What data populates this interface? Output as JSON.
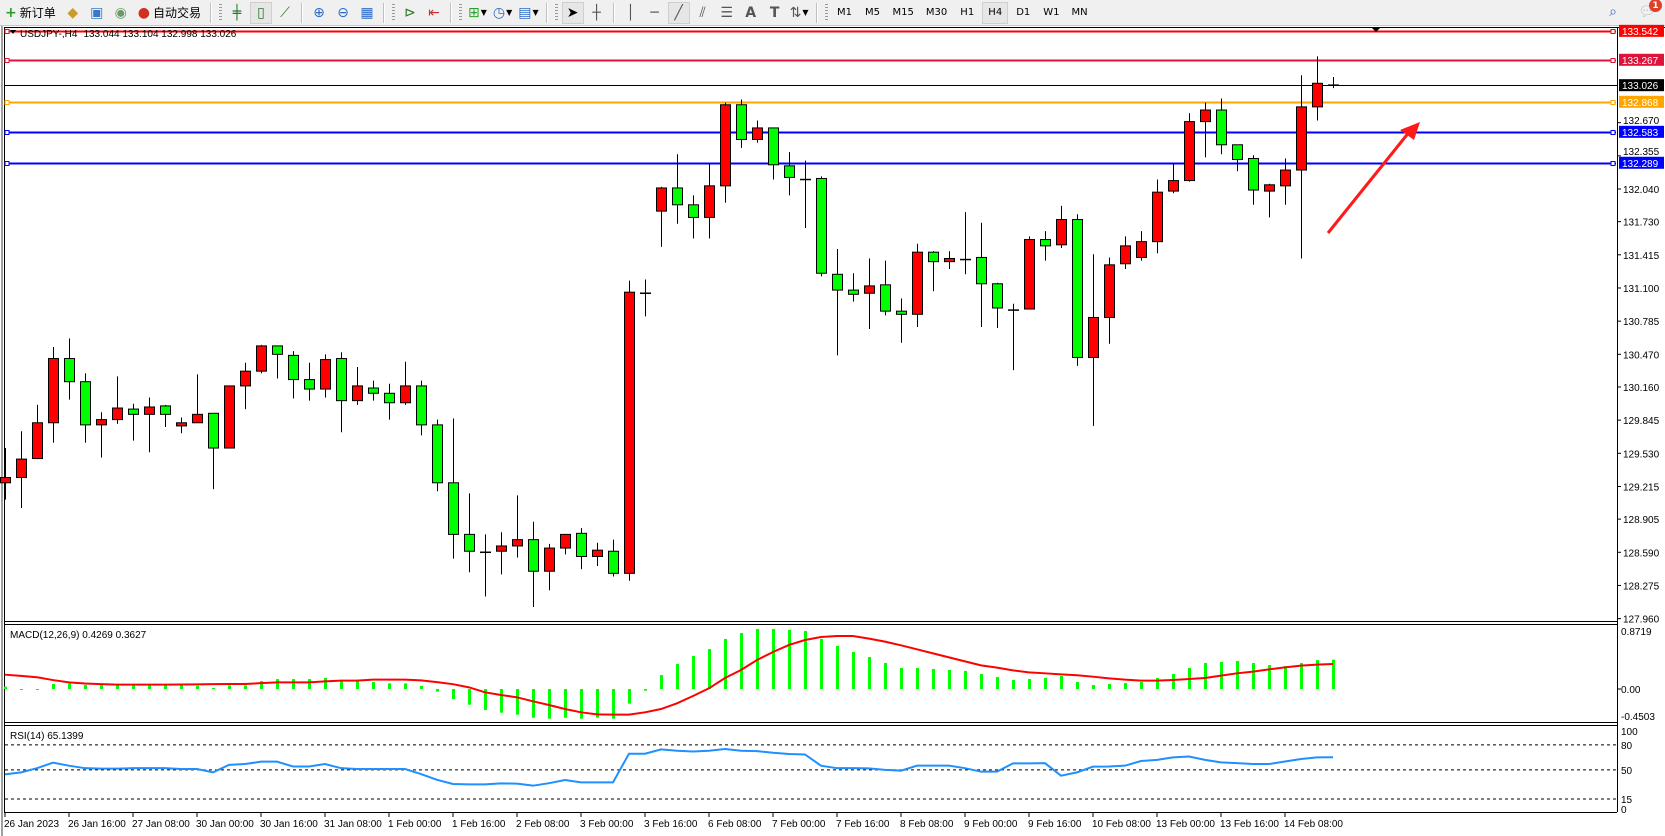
{
  "toolbar": {
    "new_order_label": "新订单",
    "auto_trading_label": "自动交易",
    "periods": [
      "M1",
      "M5",
      "M15",
      "M30",
      "H1",
      "H4",
      "D1",
      "W1",
      "MN"
    ],
    "active_period": "H4",
    "notification_count": "1"
  },
  "chart_header": {
    "symbol": "USDJPY-,H4",
    "ohlc_text": "133.044 133.104 132.998 133.026"
  },
  "colors": {
    "bull_candle": "#ff0000",
    "bear_candle": "#00ff00",
    "macd_histogram": "#00ff00",
    "macd_signal": "#ff0000",
    "rsi_line": "#1e90ff",
    "arrow": "#ff0000"
  },
  "levels": [
    {
      "price": "133.542",
      "color": "#ff0000"
    },
    {
      "price": "133.267",
      "color": "#dc143c"
    },
    {
      "price": "132.868",
      "color": "#ffa500"
    },
    {
      "price": "132.583",
      "color": "#0000ff"
    },
    {
      "price": "132.289",
      "color": "#0000ff"
    }
  ],
  "bid_line": {
    "price": "133.026",
    "color": "#000000"
  },
  "chart_data": [
    {
      "type": "candlestick",
      "title": "USDJPY-,H4",
      "x_ticks": [
        "26 Jan 2023",
        "26 Jan 16:00",
        "27 Jan 08:00",
        "30 Jan 00:00",
        "30 Jan 16:00",
        "31 Jan 08:00",
        "1 Feb 00:00",
        "1 Feb 16:00",
        "2 Feb 08:00",
        "3 Feb 00:00",
        "3 Feb 16:00",
        "6 Feb 08:00",
        "7 Feb 00:00",
        "7 Feb 16:00",
        "8 Feb 08:00",
        "9 Feb 00:00",
        "9 Feb 16:00",
        "10 Feb 08:00",
        "13 Feb 00:00",
        "13 Feb 16:00",
        "14 Feb 08:00"
      ],
      "y_ticks": [
        "132.670",
        "132.355",
        "132.040",
        "131.730",
        "131.415",
        "131.100",
        "130.785",
        "130.470",
        "130.160",
        "129.845",
        "129.530",
        "129.215",
        "128.905",
        "128.590",
        "128.275",
        "127.960"
      ],
      "ylim": [
        127.96,
        133.542
      ],
      "ohlc_columns": [
        "open",
        "high",
        "low",
        "close"
      ],
      "ohlc": [
        [
          129.25,
          129.58,
          129.09,
          129.3
        ],
        [
          129.3,
          129.74,
          129.01,
          129.475
        ],
        [
          129.48,
          129.99,
          129.475,
          129.82
        ],
        [
          129.82,
          130.54,
          129.63,
          130.43
        ],
        [
          130.43,
          130.62,
          130.04,
          130.21
        ],
        [
          130.21,
          130.29,
          129.63,
          129.8
        ],
        [
          129.8,
          129.92,
          129.49,
          129.85
        ],
        [
          129.85,
          130.26,
          129.81,
          129.96
        ],
        [
          129.95,
          130.0,
          129.65,
          129.9
        ],
        [
          129.9,
          130.06,
          129.54,
          129.97
        ],
        [
          129.98,
          129.99,
          129.78,
          129.9
        ],
        [
          129.79,
          129.87,
          129.72,
          129.82
        ],
        [
          129.82,
          130.28,
          129.82,
          129.9
        ],
        [
          129.91,
          129.91,
          129.19,
          129.58
        ],
        [
          129.58,
          130.17,
          129.58,
          130.17
        ],
        [
          130.17,
          130.39,
          129.95,
          130.31
        ],
        [
          130.31,
          130.56,
          130.29,
          130.55
        ],
        [
          130.55,
          130.55,
          130.24,
          130.47
        ],
        [
          130.46,
          130.5,
          130.05,
          130.23
        ],
        [
          130.23,
          130.39,
          130.03,
          130.14
        ],
        [
          130.14,
          130.47,
          130.06,
          130.42
        ],
        [
          130.43,
          130.49,
          129.73,
          130.03
        ],
        [
          130.03,
          130.35,
          129.99,
          130.17
        ],
        [
          130.15,
          130.22,
          130.03,
          130.1
        ],
        [
          130.1,
          130.19,
          129.85,
          130.01
        ],
        [
          130.01,
          130.4,
          129.99,
          130.17
        ],
        [
          130.17,
          130.22,
          129.7,
          129.8
        ],
        [
          129.8,
          129.85,
          129.17,
          129.25
        ],
        [
          129.25,
          129.86,
          128.53,
          128.76
        ],
        [
          128.76,
          129.15,
          128.4,
          128.6
        ],
        [
          128.6,
          128.76,
          128.17,
          128.59
        ],
        [
          128.6,
          128.78,
          128.38,
          128.65
        ],
        [
          128.65,
          129.13,
          128.54,
          128.71
        ],
        [
          128.71,
          128.88,
          128.07,
          128.41
        ],
        [
          128.41,
          128.67,
          128.23,
          128.63
        ],
        [
          128.63,
          128.76,
          128.57,
          128.76
        ],
        [
          128.77,
          128.82,
          128.43,
          128.55
        ],
        [
          128.55,
          128.68,
          128.46,
          128.61
        ],
        [
          128.6,
          128.71,
          128.36,
          128.39
        ],
        [
          128.39,
          131.17,
          128.32,
          131.06
        ],
        [
          131.06,
          131.18,
          130.83,
          131.05
        ],
        [
          131.83,
          132.06,
          131.49,
          132.05
        ],
        [
          132.05,
          132.37,
          131.71,
          131.89
        ],
        [
          131.89,
          131.98,
          131.57,
          131.77
        ],
        [
          131.77,
          132.28,
          131.57,
          132.07
        ],
        [
          132.07,
          132.86,
          131.91,
          132.84
        ],
        [
          132.84,
          132.89,
          132.43,
          132.51
        ],
        [
          132.51,
          132.69,
          132.48,
          132.62
        ],
        [
          132.62,
          132.62,
          132.13,
          132.27
        ],
        [
          132.26,
          132.39,
          131.98,
          132.15
        ],
        [
          132.14,
          132.31,
          131.67,
          132.13
        ],
        [
          132.14,
          132.16,
          131.21,
          131.24
        ],
        [
          131.23,
          131.47,
          130.46,
          131.08
        ],
        [
          131.08,
          131.24,
          130.97,
          131.04
        ],
        [
          131.05,
          131.38,
          130.71,
          131.12
        ],
        [
          131.13,
          131.36,
          130.84,
          130.88
        ],
        [
          130.88,
          131.0,
          130.58,
          130.85
        ],
        [
          130.85,
          131.52,
          130.73,
          131.44
        ],
        [
          131.44,
          131.45,
          131.07,
          131.35
        ],
        [
          131.35,
          131.45,
          131.28,
          131.38
        ],
        [
          131.38,
          131.82,
          131.23,
          131.37
        ],
        [
          131.39,
          131.72,
          130.73,
          131.14
        ],
        [
          131.14,
          131.15,
          130.72,
          130.91
        ],
        [
          130.9,
          130.95,
          130.32,
          130.89
        ],
        [
          130.9,
          131.59,
          130.9,
          131.56
        ],
        [
          131.56,
          131.64,
          131.36,
          131.5
        ],
        [
          131.51,
          131.88,
          131.48,
          131.75
        ],
        [
          131.75,
          131.8,
          130.36,
          130.44
        ],
        [
          130.44,
          131.42,
          129.79,
          130.82
        ],
        [
          130.82,
          131.39,
          130.57,
          131.32
        ],
        [
          131.33,
          131.59,
          131.28,
          131.5
        ],
        [
          131.39,
          131.64,
          131.36,
          131.54
        ],
        [
          131.54,
          132.13,
          131.43,
          132.01
        ],
        [
          132.02,
          132.28,
          132.0,
          132.12
        ],
        [
          132.12,
          132.76,
          132.11,
          132.68
        ],
        [
          132.68,
          132.86,
          132.34,
          132.79
        ],
        [
          132.79,
          132.9,
          132.37,
          132.46
        ],
        [
          132.46,
          132.46,
          132.21,
          132.32
        ],
        [
          132.33,
          132.36,
          131.89,
          132.03
        ],
        [
          132.02,
          132.09,
          131.77,
          132.08
        ],
        [
          132.07,
          132.33,
          131.89,
          132.22
        ],
        [
          132.22,
          133.12,
          131.38,
          132.82
        ],
        [
          132.82,
          133.3,
          132.69,
          133.044
        ],
        [
          133.044,
          133.104,
          132.998,
          133.026
        ]
      ]
    },
    {
      "type": "bar",
      "title": "MACD(12,26,9) 0.4269 0.3627",
      "y_ticks": [
        "0.8719",
        "0.00",
        "-0.4503"
      ],
      "ylim": [
        -0.4503,
        0.8719
      ],
      "histogram": [
        0.034,
        -0.005,
        -0.005,
        0.073,
        0.082,
        0.058,
        0.058,
        0.058,
        0.058,
        0.058,
        0.058,
        0.068,
        0.048,
        0.015,
        0.053,
        0.053,
        0.116,
        0.145,
        0.145,
        0.145,
        0.16,
        0.126,
        0.111,
        0.102,
        0.082,
        0.082,
        0.044,
        -0.039,
        -0.145,
        -0.228,
        -0.305,
        -0.344,
        -0.373,
        -0.417,
        -0.431,
        -0.417,
        -0.431,
        -0.417,
        -0.431,
        -0.213,
        -0.024,
        0.203,
        0.363,
        0.48,
        0.581,
        0.727,
        0.814,
        0.872,
        0.872,
        0.858,
        0.843,
        0.727,
        0.625,
        0.538,
        0.465,
        0.378,
        0.305,
        0.305,
        0.291,
        0.276,
        0.262,
        0.218,
        0.174,
        0.131,
        0.145,
        0.16,
        0.189,
        0.102,
        0.058,
        0.073,
        0.087,
        0.102,
        0.16,
        0.218,
        0.305,
        0.378,
        0.392,
        0.407,
        0.378,
        0.349,
        0.334,
        0.378,
        0.421,
        0.4269
      ],
      "signal": [
        0.208,
        0.19,
        0.17,
        0.13,
        0.097,
        0.08,
        0.07,
        0.063,
        0.063,
        0.063,
        0.063,
        0.065,
        0.068,
        0.07,
        0.073,
        0.073,
        0.085,
        0.097,
        0.097,
        0.097,
        0.11,
        0.121,
        0.121,
        0.136,
        0.136,
        0.136,
        0.125,
        0.1,
        0.07,
        0.024,
        -0.048,
        -0.087,
        -0.121,
        -0.179,
        -0.233,
        -0.291,
        -0.339,
        -0.368,
        -0.373,
        -0.373,
        -0.339,
        -0.291,
        -0.208,
        -0.102,
        0.01,
        0.16,
        0.276,
        0.421,
        0.538,
        0.64,
        0.712,
        0.756,
        0.77,
        0.77,
        0.732,
        0.688,
        0.635,
        0.577,
        0.518,
        0.46,
        0.402,
        0.344,
        0.31,
        0.271,
        0.242,
        0.228,
        0.213,
        0.199,
        0.179,
        0.155,
        0.136,
        0.121,
        0.121,
        0.131,
        0.145,
        0.16,
        0.194,
        0.228,
        0.252,
        0.286,
        0.315,
        0.339,
        0.355,
        0.3627
      ]
    },
    {
      "type": "line",
      "title": "RSI(14) 65.1399",
      "y_ticks": [
        "100",
        "80",
        "50",
        "15",
        "0"
      ],
      "levels": [
        80,
        50,
        15
      ],
      "ylim": [
        0,
        100
      ],
      "values": [
        44.6,
        47,
        52,
        58.6,
        55,
        52,
        51.5,
        51.5,
        52,
        52,
        52,
        51,
        51,
        47,
        56,
        57,
        59.8,
        59.8,
        54,
        54,
        57,
        52,
        51,
        51,
        51,
        51,
        45,
        38,
        33,
        32.6,
        32.6,
        33.8,
        33.5,
        31,
        34,
        37.8,
        35,
        35,
        35,
        69.4,
        69.4,
        74.6,
        73,
        72,
        73,
        75,
        73,
        72.5,
        70.5,
        69,
        68.5,
        55,
        52,
        52,
        51.8,
        50,
        49,
        55,
        55,
        55,
        52,
        47.8,
        47.8,
        57.8,
        57.8,
        58,
        43,
        47,
        53.8,
        54,
        55,
        60.6,
        62,
        65,
        66,
        62,
        59,
        58,
        57,
        57,
        60,
        63,
        65,
        65.14
      ]
    }
  ]
}
